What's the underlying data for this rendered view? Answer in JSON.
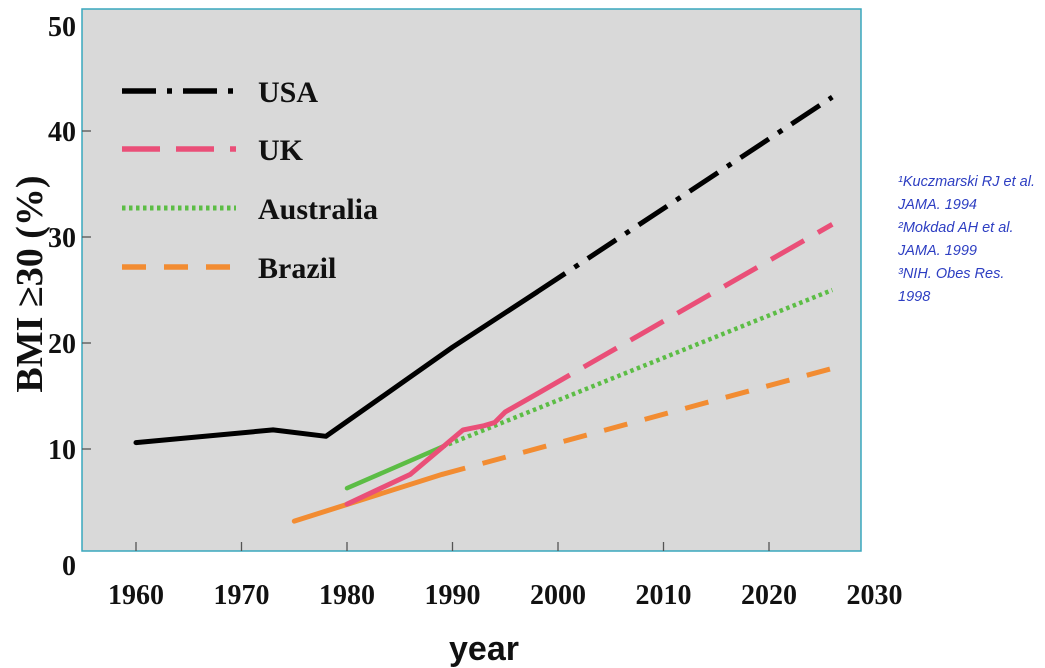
{
  "chart_data": {
    "type": "line",
    "xlabel": "year",
    "ylabel": "BMI ≥30 (%)",
    "xlim": [
      1955,
      2030
    ],
    "ylim": [
      0,
      50
    ],
    "x_ticks": [
      1960,
      1970,
      1980,
      1990,
      2000,
      2010,
      2020,
      2030
    ],
    "y_ticks": [
      0,
      10,
      20,
      30,
      40,
      50
    ],
    "grid": false,
    "legend_position": "top-left",
    "series": [
      {
        "name": "USA",
        "color": "#000000",
        "observed": [
          [
            1960,
            10.6
          ],
          [
            1973,
            11.8
          ],
          [
            1978,
            11.2
          ],
          [
            1990,
            19.6
          ],
          [
            1998,
            24.8
          ]
        ],
        "projected": [
          [
            1998,
            24.8
          ],
          [
            2026,
            43.2
          ]
        ]
      },
      {
        "name": "UK",
        "color": "#ea4f78",
        "observed": [
          [
            1980,
            4.8
          ],
          [
            1986,
            7.6
          ],
          [
            1991,
            11.8
          ],
          [
            1993,
            12.2
          ],
          [
            1994,
            12.5
          ],
          [
            1995,
            13.5
          ],
          [
            1998,
            15.2
          ]
        ],
        "projected": [
          [
            1998,
            15.2
          ],
          [
            2026,
            31.2
          ]
        ]
      },
      {
        "name": "Australia",
        "color": "#5cbd45",
        "observed": [
          [
            1980,
            6.3
          ],
          [
            1989,
            10.2
          ]
        ],
        "projected": [
          [
            1989,
            10.2
          ],
          [
            2026,
            25.0
          ]
        ]
      },
      {
        "name": "Brazil",
        "color": "#f28c32",
        "observed": [
          [
            1975,
            3.2
          ],
          [
            1989,
            7.6
          ]
        ],
        "projected": [
          [
            1989,
            7.6
          ],
          [
            2026,
            17.6
          ]
        ]
      }
    ]
  },
  "references": [
    "¹Kuczmarski RJ et al.",
    "JAMA. 1994",
    "²Mokdad AH et al.",
    "JAMA. 1999",
    "³NIH. Obes Res.",
    "1998"
  ]
}
